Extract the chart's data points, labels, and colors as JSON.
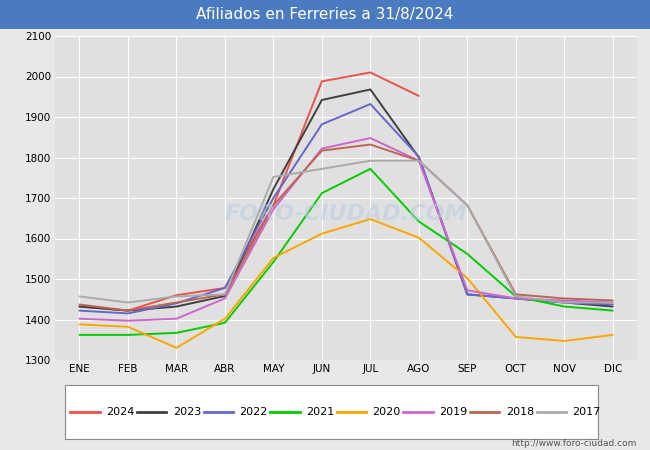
{
  "title": "Afiliados en Ferreries a 31/8/2024",
  "title_bg_color": "#4a7abf",
  "title_text_color": "white",
  "ylim": [
    1300,
    2100
  ],
  "yticks": [
    1300,
    1400,
    1500,
    1600,
    1700,
    1800,
    1900,
    2000,
    2100
  ],
  "months": [
    "ENE",
    "FEB",
    "MAR",
    "ABR",
    "MAY",
    "JUN",
    "JUL",
    "AGO",
    "SEP",
    "OCT",
    "NOV",
    "DIC"
  ],
  "background_color": "#e8e8e8",
  "plot_bg_color": "#e0e0e0",
  "watermark": "FORO-CIUDAD.COM",
  "url": "http://www.foro-ciudad.com",
  "series": {
    "2024": {
      "color": "#e8534a",
      "linewidth": 1.4,
      "values": [
        1432,
        1422,
        1460,
        1478,
        1682,
        1988,
        2010,
        1952,
        null,
        null,
        null,
        null
      ]
    },
    "2023": {
      "color": "#404040",
      "linewidth": 1.4,
      "values": [
        1432,
        1422,
        1432,
        1458,
        1722,
        1942,
        1968,
        1800,
        1462,
        1452,
        1442,
        1432
      ]
    },
    "2022": {
      "color": "#6666cc",
      "linewidth": 1.4,
      "values": [
        1422,
        1415,
        1440,
        1478,
        1700,
        1882,
        1932,
        1802,
        1462,
        1452,
        1442,
        1437
      ]
    },
    "2021": {
      "color": "#00cc00",
      "linewidth": 1.4,
      "values": [
        1362,
        1362,
        1367,
        1392,
        1542,
        1712,
        1772,
        1642,
        1562,
        1457,
        1432,
        1422
      ]
    },
    "2020": {
      "color": "#ffa500",
      "linewidth": 1.4,
      "values": [
        1388,
        1382,
        1330,
        1402,
        1552,
        1612,
        1648,
        1602,
        1502,
        1357,
        1347,
        1362
      ]
    },
    "2019": {
      "color": "#cc66cc",
      "linewidth": 1.4,
      "values": [
        1402,
        1397,
        1402,
        1452,
        1672,
        1822,
        1848,
        1792,
        1472,
        1452,
        1447,
        1442
      ]
    },
    "2018": {
      "color": "#bb6655",
      "linewidth": 1.4,
      "values": [
        1437,
        1422,
        1442,
        1462,
        1682,
        1817,
        1832,
        1792,
        1682,
        1462,
        1452,
        1447
      ]
    },
    "2017": {
      "color": "#aaaaaa",
      "linewidth": 1.4,
      "values": [
        1457,
        1442,
        1457,
        1462,
        1752,
        1772,
        1792,
        1792,
        1682,
        1457,
        1442,
        1442
      ]
    }
  },
  "legend_order": [
    "2024",
    "2023",
    "2022",
    "2021",
    "2020",
    "2019",
    "2018",
    "2017"
  ]
}
